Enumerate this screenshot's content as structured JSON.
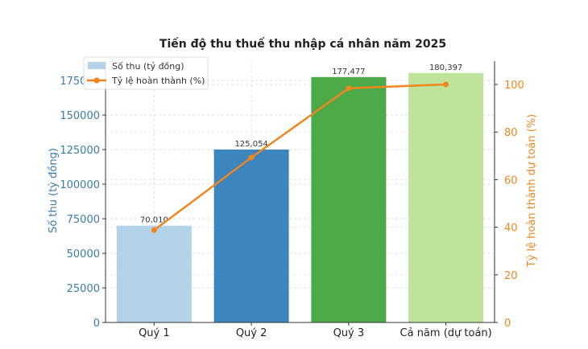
{
  "chart_data": {
    "type": "bar",
    "title": "Tiến độ thu thuế thu nhập cá nhân năm 2025",
    "categories": [
      "Quý 1",
      "Quý 2",
      "Quý 3",
      "Cả năm (dự toán)"
    ],
    "series": [
      {
        "name": "Số thu (tỷ đồng)",
        "type": "bar",
        "axis": "left",
        "values": [
          70010,
          125054,
          177477,
          180397
        ],
        "labels": [
          "70,010",
          "125,054",
          "177,477",
          "180,397"
        ],
        "colors": [
          "#b3d3e8",
          "#3d85bf",
          "#4ca948",
          "#bfe39a"
        ]
      },
      {
        "name": "Tỷ lệ hoàn thành (%)",
        "type": "line",
        "axis": "right",
        "values": [
          38.8,
          69.3,
          98.4,
          100
        ],
        "color": "#f0861e"
      }
    ],
    "ylabel": "Số thu (tỷ đồng)",
    "ylabel_color": "#3b7ca8",
    "y2label": "Tỷ lệ hoàn thành dự toán (%)",
    "y2label_color": "#f0861e",
    "ylim": [
      0,
      189000
    ],
    "y2lim": [
      0,
      109.8
    ],
    "yticks": [
      0,
      25000,
      50000,
      75000,
      100000,
      125000,
      150000,
      175000
    ],
    "y2ticks": [
      0,
      20,
      40,
      60,
      80,
      100
    ],
    "grid": true,
    "legend": "top-left"
  }
}
